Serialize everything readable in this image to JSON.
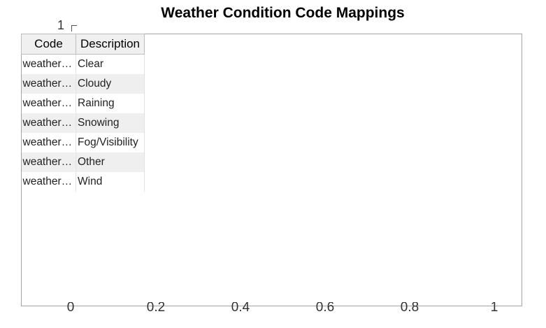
{
  "title": "Weather Condition Code Mappings",
  "y_tick": "1",
  "x_ticks": [
    "0",
    "0.2",
    "0.4",
    "0.6",
    "0.8",
    "1"
  ],
  "table": {
    "headers": [
      "Code",
      "Description"
    ],
    "rows": [
      {
        "code": "weather…",
        "description": "Clear"
      },
      {
        "code": "weather…",
        "description": "Cloudy"
      },
      {
        "code": "weather…",
        "description": "Raining"
      },
      {
        "code": "weather…",
        "description": "Snowing"
      },
      {
        "code": "weather…",
        "description": "Fog/Visibility"
      },
      {
        "code": "weather…",
        "description": "Other"
      },
      {
        "code": "weather…",
        "description": "Wind"
      }
    ]
  }
}
